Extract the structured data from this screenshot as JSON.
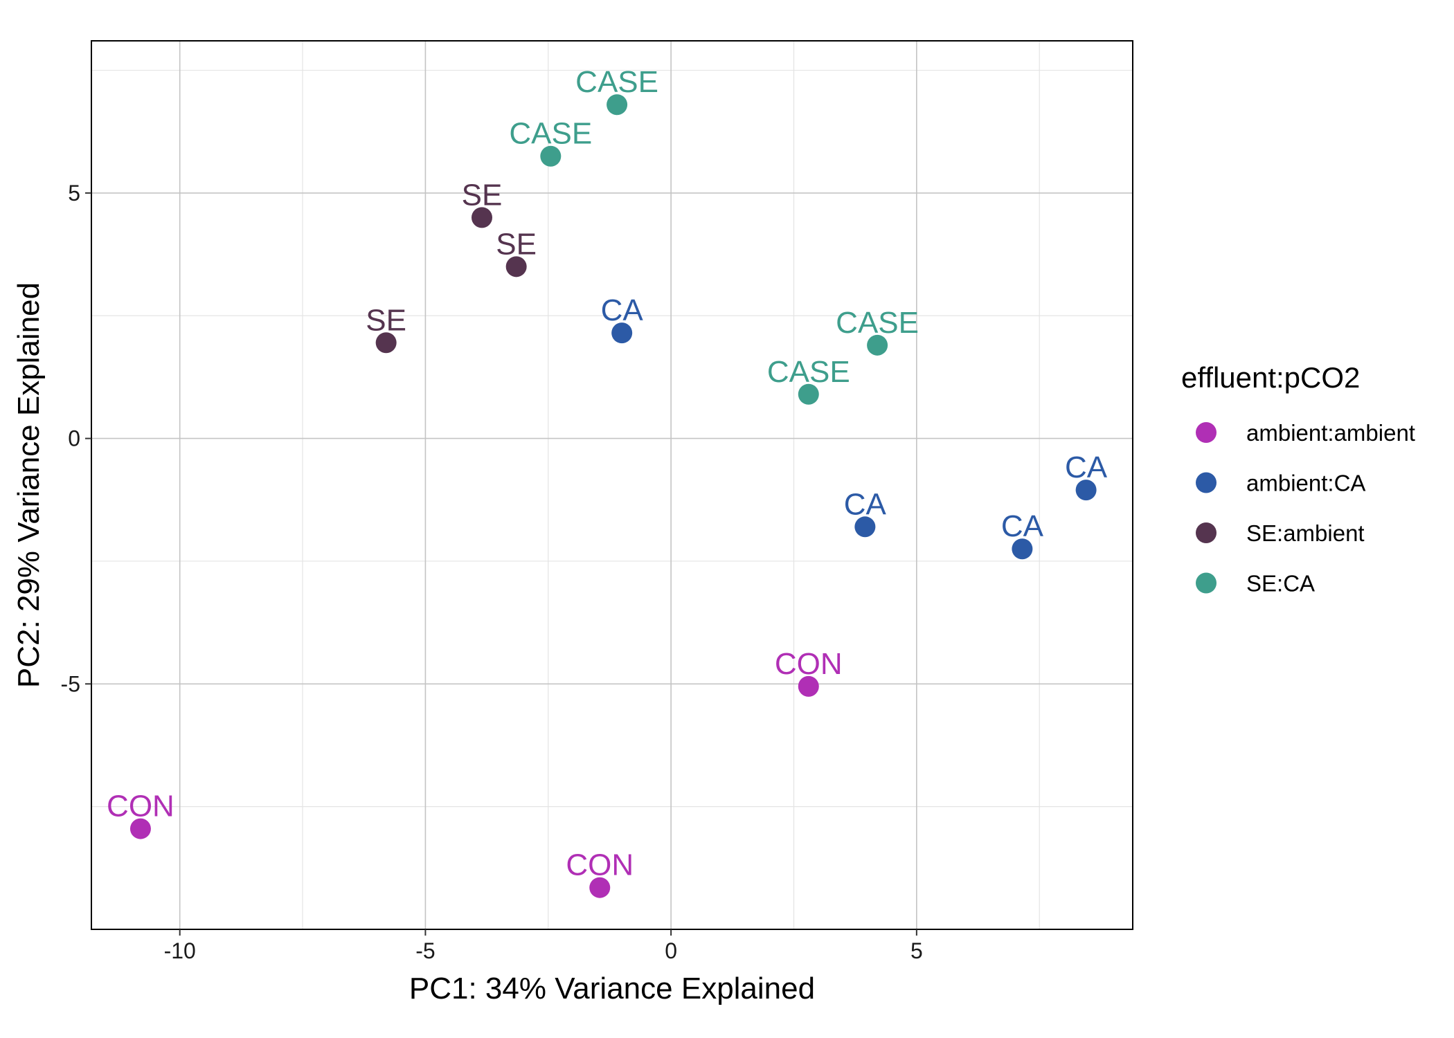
{
  "chart_data": {
    "type": "scatter",
    "title": "",
    "xlabel": "PC1: 34% Variance Explained",
    "ylabel": "PC2: 29% Variance Explained",
    "xlim": [
      -11.8,
      9.4
    ],
    "ylim": [
      -10.0,
      8.1
    ],
    "x_major_ticks": [
      -10,
      -5,
      0,
      5
    ],
    "y_major_ticks": [
      -5,
      0,
      5
    ],
    "x_minor_ticks": [
      -7.5,
      -2.5,
      2.5,
      7.5
    ],
    "y_minor_ticks": [
      -7.5,
      -2.5,
      2.5,
      7.5
    ],
    "x_tick_labels": [
      "-10",
      "-5",
      "0",
      "5"
    ],
    "y_tick_labels": [
      "-5",
      "0",
      "5"
    ],
    "grid": true,
    "legend": {
      "title": "effluent:pCO2",
      "position": "right"
    },
    "series": [
      {
        "name": "ambient:ambient",
        "color": "#B02FB5",
        "points": [
          {
            "x": -10.8,
            "y": -7.95,
            "label": "CON"
          },
          {
            "x": -1.45,
            "y": -9.15,
            "label": "CON"
          },
          {
            "x": 2.8,
            "y": -5.05,
            "label": "CON"
          }
        ]
      },
      {
        "name": "ambient:CA",
        "color": "#2C5AA6",
        "points": [
          {
            "x": -1.0,
            "y": 2.15,
            "label": "CA"
          },
          {
            "x": 3.95,
            "y": -1.8,
            "label": "CA"
          },
          {
            "x": 7.15,
            "y": -2.25,
            "label": "CA"
          },
          {
            "x": 8.45,
            "y": -1.05,
            "label": "CA"
          }
        ]
      },
      {
        "name": "SE:ambient",
        "color": "#55344F",
        "points": [
          {
            "x": -3.85,
            "y": 4.5,
            "label": "SE"
          },
          {
            "x": -3.15,
            "y": 3.5,
            "label": "SE"
          },
          {
            "x": -5.8,
            "y": 1.95,
            "label": "SE"
          }
        ]
      },
      {
        "name": "SE:CA",
        "color": "#3E9E8C",
        "points": [
          {
            "x": -1.1,
            "y": 6.8,
            "label": "CASE"
          },
          {
            "x": -2.45,
            "y": 5.75,
            "label": "CASE"
          },
          {
            "x": 4.2,
            "y": 1.9,
            "label": "CASE"
          },
          {
            "x": 2.8,
            "y": 0.9,
            "label": "CASE"
          }
        ]
      }
    ]
  }
}
